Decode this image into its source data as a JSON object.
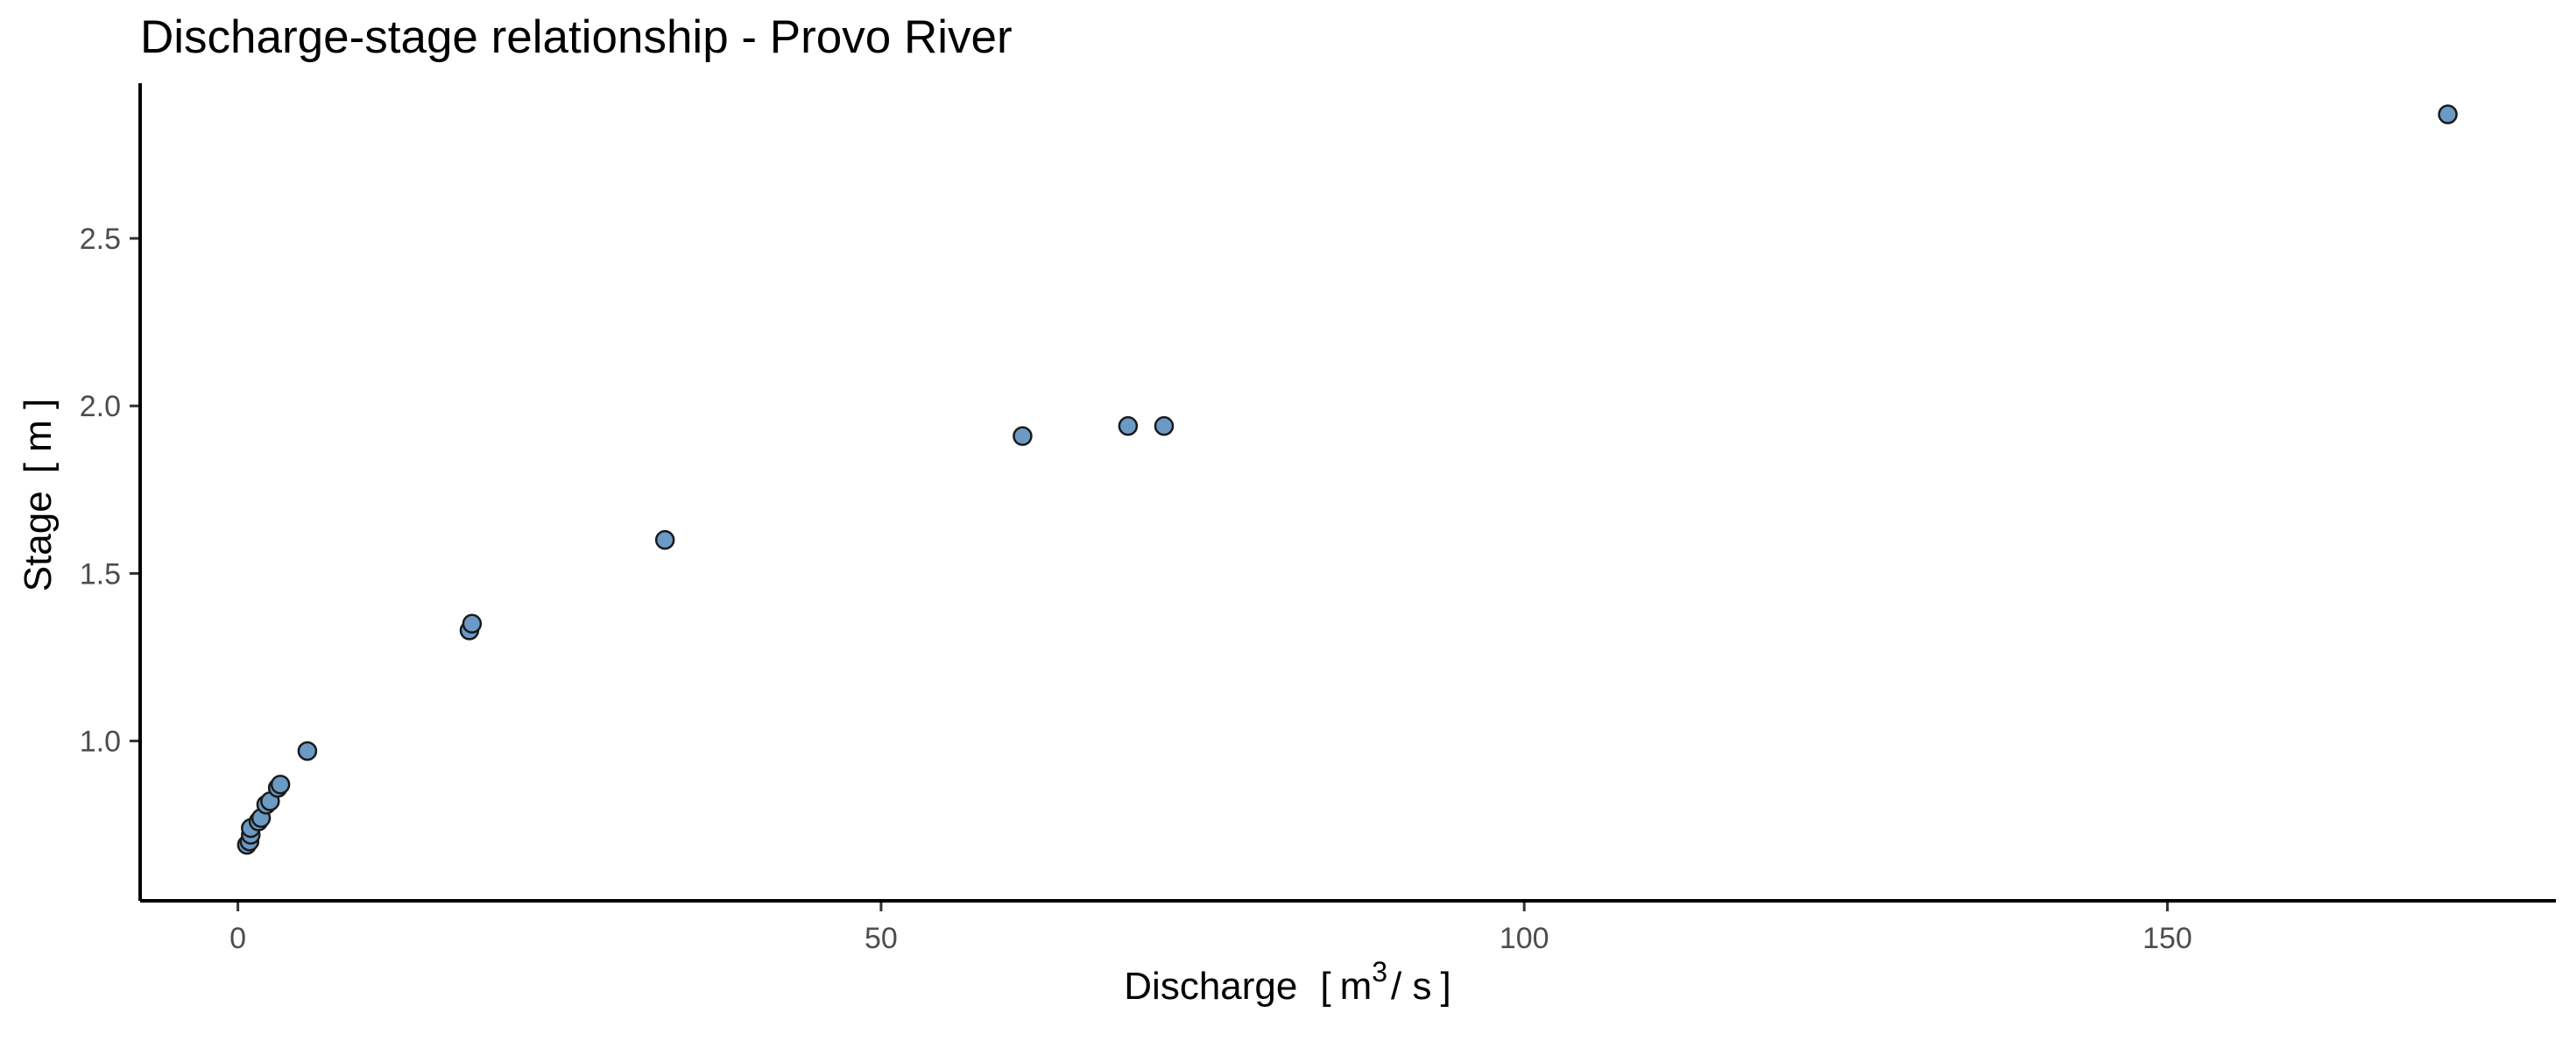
{
  "chart_data": {
    "type": "scatter",
    "title": "Discharge-stage relationship - Provo River",
    "xlabel": "Discharge",
    "xlabel_unit_open": "[",
    "xlabel_unit_base": "m",
    "xlabel_unit_sup": "3",
    "xlabel_unit_tail": "/ s",
    "xlabel_unit_close": "]",
    "ylabel": "Stage",
    "ylabel_unit": "[ m ]",
    "xlim": [
      -7.6,
      180.2
    ],
    "ylim": [
      0.523,
      2.963
    ],
    "xticks": [
      0,
      50,
      100,
      150
    ],
    "xtick_labels": [
      "0",
      "50",
      "100",
      "150"
    ],
    "yticks": [
      1.0,
      1.5,
      2.0,
      2.5
    ],
    "ytick_labels": [
      "1.0",
      "1.5",
      "2.0",
      "2.5"
    ],
    "grid": false,
    "legend": "none",
    "marker_fill": "#6b9ac4",
    "marker_edge": "#1a1a1a",
    "points": [
      {
        "x": 0.7,
        "y": 0.69
      },
      {
        "x": 0.9,
        "y": 0.7
      },
      {
        "x": 1.0,
        "y": 0.72
      },
      {
        "x": 1.0,
        "y": 0.74
      },
      {
        "x": 1.6,
        "y": 0.76
      },
      {
        "x": 1.8,
        "y": 0.77
      },
      {
        "x": 2.2,
        "y": 0.81
      },
      {
        "x": 2.5,
        "y": 0.82
      },
      {
        "x": 3.1,
        "y": 0.86
      },
      {
        "x": 3.3,
        "y": 0.87
      },
      {
        "x": 5.4,
        "y": 0.97
      },
      {
        "x": 18.0,
        "y": 1.33
      },
      {
        "x": 18.2,
        "y": 1.35
      },
      {
        "x": 33.2,
        "y": 1.6
      },
      {
        "x": 61.0,
        "y": 1.91
      },
      {
        "x": 69.2,
        "y": 1.94
      },
      {
        "x": 72.0,
        "y": 1.94
      },
      {
        "x": 171.8,
        "y": 2.87
      }
    ]
  }
}
